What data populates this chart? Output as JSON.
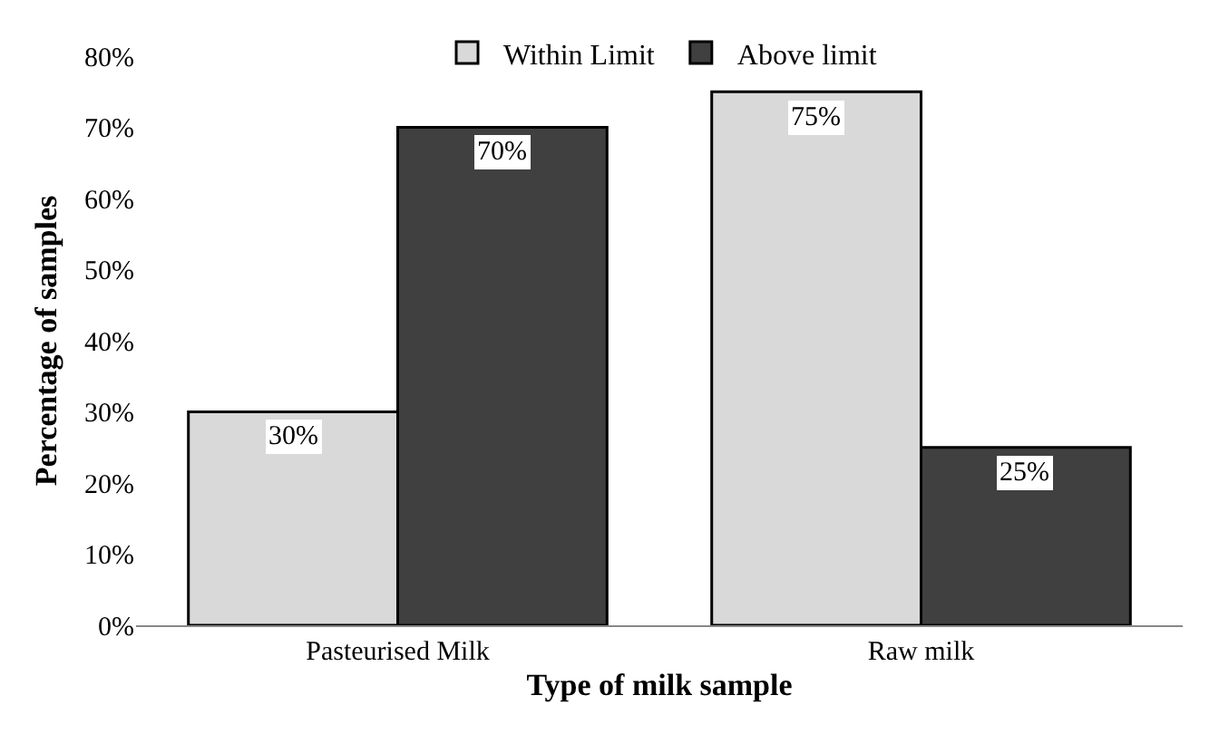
{
  "chart_data": {
    "type": "bar",
    "xlabel": "Type of milk sample",
    "ylabel": "Percentage of samples",
    "categories": [
      "Pasteurised Milk",
      "Raw milk"
    ],
    "series": [
      {
        "name": "Within Limit",
        "color": "#d9d9d9",
        "values": [
          30,
          75
        ],
        "value_labels": [
          "30%",
          "75%"
        ]
      },
      {
        "name": "Above limit",
        "color": "#404040",
        "values": [
          70,
          25
        ],
        "value_labels": [
          "70%",
          "25%"
        ]
      }
    ],
    "ylim": [
      0,
      80
    ],
    "yticks": [
      {
        "value": 0,
        "label": "0%"
      },
      {
        "value": 10,
        "label": "10%"
      },
      {
        "value": 20,
        "label": "20%"
      },
      {
        "value": 30,
        "label": "30%"
      },
      {
        "value": 40,
        "label": "40%"
      },
      {
        "value": 50,
        "label": "50%"
      },
      {
        "value": 60,
        "label": "60%"
      },
      {
        "value": 70,
        "label": "70%"
      },
      {
        "value": 80,
        "label": "80%"
      }
    ],
    "grid": false,
    "legend": "top"
  }
}
